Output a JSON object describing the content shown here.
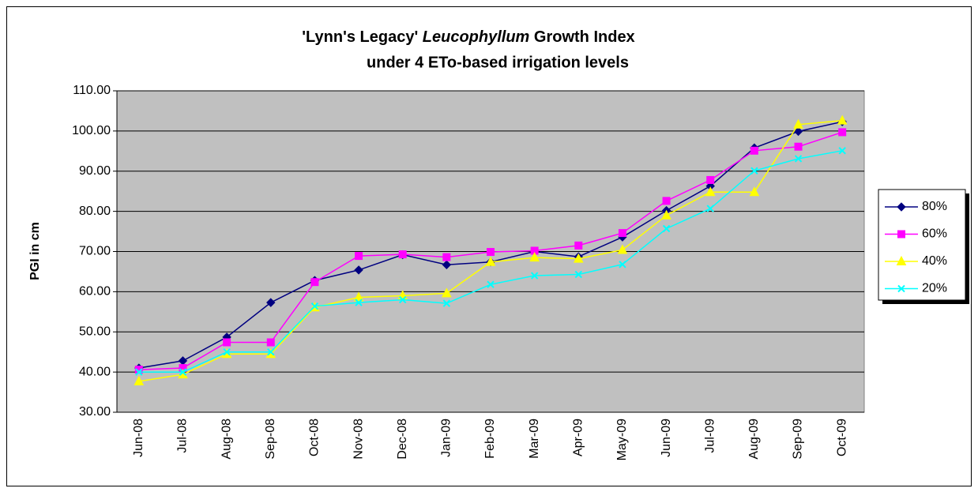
{
  "chart_data": {
    "type": "line",
    "title_parts": [
      {
        "text": "'Lynn's Legacy' "
      },
      {
        "text": "Leucophyllum",
        "italic": true
      },
      {
        "text": " Growth Index"
      }
    ],
    "subtitle": "under 4 ETo-based irrigation levels",
    "y_label": "PGI in cm",
    "categories": [
      "Jun-08",
      "Jul-08",
      "Aug-08",
      "Sep-08",
      "Oct-08",
      "Nov-08",
      "Dec-08",
      "Jan-09",
      "Feb-09",
      "Mar-09",
      "Apr-09",
      "May-09",
      "Jun-09",
      "Jul-09",
      "Aug-09",
      "Sep-09",
      "Oct-09"
    ],
    "series": [
      {
        "name": "80%",
        "color": "#000080",
        "marker": "diamond",
        "values": [
          41.0,
          42.8,
          48.7,
          57.3,
          62.8,
          65.4,
          69.2,
          66.7,
          67.4,
          70.0,
          68.7,
          73.6,
          80.2,
          86.3,
          95.8,
          99.9,
          102.3
        ]
      },
      {
        "name": "60%",
        "color": "#ff00ff",
        "marker": "square",
        "values": [
          40.6,
          41.0,
          47.4,
          47.4,
          62.4,
          68.9,
          69.3,
          68.6,
          69.9,
          70.2,
          71.5,
          74.6,
          82.6,
          87.8,
          95.1,
          96.1,
          99.7
        ]
      },
      {
        "name": "40%",
        "color": "#ffff00",
        "marker": "triangle",
        "values": [
          37.7,
          39.4,
          44.5,
          44.5,
          56.1,
          58.6,
          59.0,
          59.6,
          67.4,
          68.5,
          68.2,
          70.4,
          79.0,
          84.8,
          84.8,
          101.6,
          102.6
        ]
      },
      {
        "name": "20%",
        "color": "#00ffff",
        "marker": "x",
        "values": [
          40.0,
          40.0,
          45.0,
          45.0,
          56.4,
          57.3,
          58.0,
          57.1,
          61.8,
          64.0,
          64.3,
          66.8,
          75.7,
          80.7,
          90.1,
          93.1,
          95.1
        ]
      }
    ],
    "ylim": [
      30,
      110
    ],
    "yticks": [
      {
        "value": 30,
        "label": "30.00"
      },
      {
        "value": 40,
        "label": "40.00"
      },
      {
        "value": 50,
        "label": "50.00"
      },
      {
        "value": 60,
        "label": "60.00"
      },
      {
        "value": 70,
        "label": "70.00"
      },
      {
        "value": 80,
        "label": "80.00"
      },
      {
        "value": 90,
        "label": "90.00"
      },
      {
        "value": 100,
        "label": "100.00"
      },
      {
        "value": 110,
        "label": "110.00"
      }
    ],
    "grid": true,
    "plot_background": "#c0c0c0",
    "legend": "right"
  }
}
